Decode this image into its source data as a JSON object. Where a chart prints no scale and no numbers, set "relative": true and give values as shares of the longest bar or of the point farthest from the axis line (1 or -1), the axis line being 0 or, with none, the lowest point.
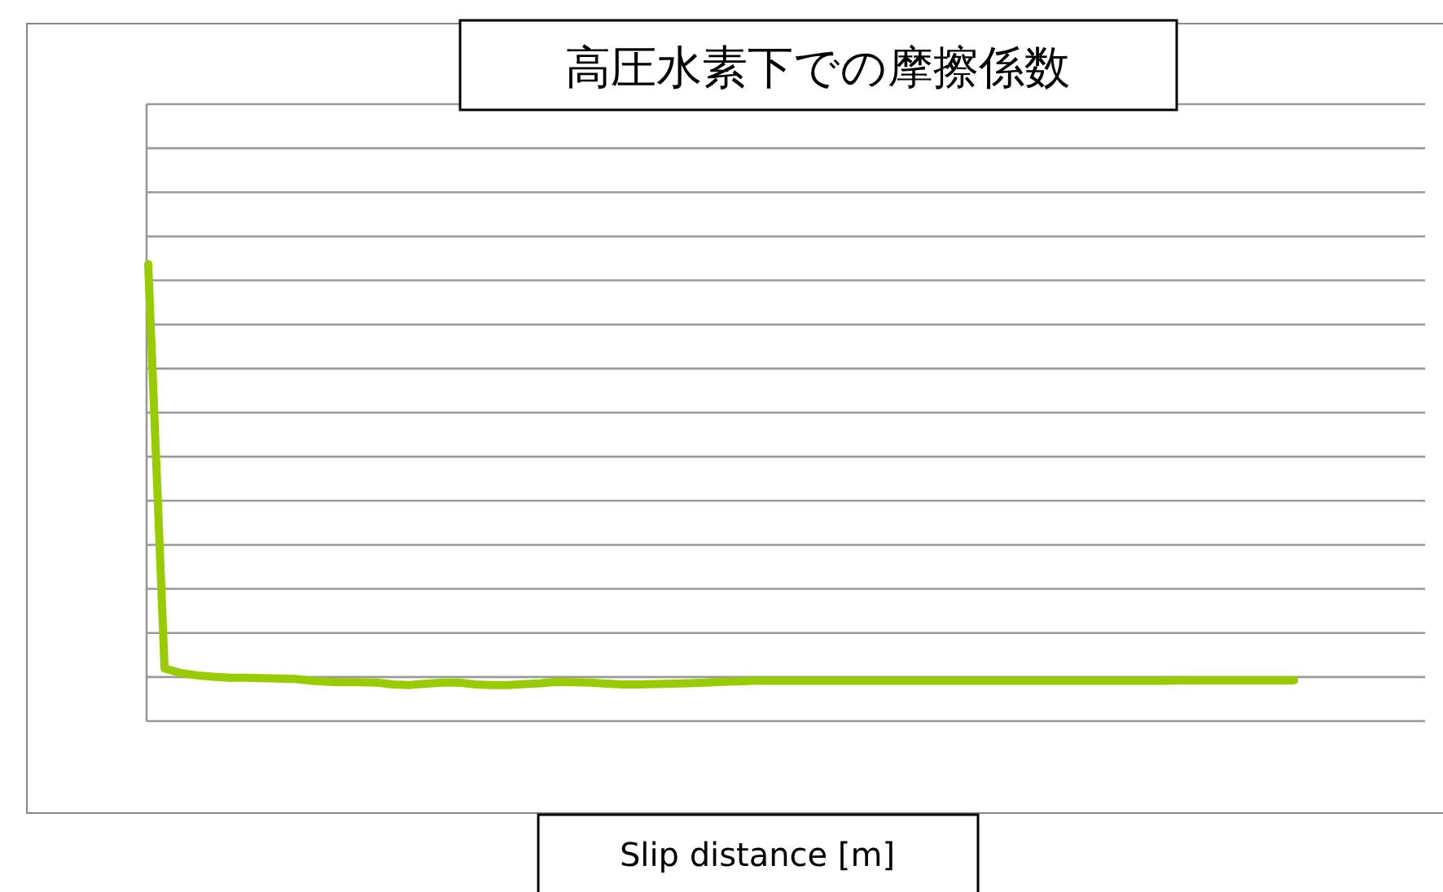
{
  "chart_data": {
    "type": "line",
    "title": "高圧水素下での摩擦係数",
    "xlabel": "Slip distance [m]",
    "relative": true,
    "grid": "y",
    "marker": "none",
    "line_style": "solid",
    "categories": [
      null,
      null,
      null,
      null,
      null,
      null,
      null,
      null,
      null,
      null,
      null,
      null,
      null,
      null,
      null,
      null,
      null,
      null,
      null,
      null,
      null,
      null,
      null,
      null,
      null,
      null,
      null,
      null,
      null,
      null,
      null,
      null,
      null,
      null,
      null,
      null,
      null,
      null,
      null,
      null,
      null,
      null,
      null,
      null,
      null,
      null,
      null,
      null,
      null,
      null,
      null,
      null,
      null,
      null,
      null,
      null,
      null,
      null,
      null,
      null,
      null,
      null,
      null,
      null,
      null,
      null,
      null,
      null,
      null,
      null,
      null,
      null,
      null,
      null,
      null,
      null,
      null,
      null,
      null
    ],
    "series": [
      {
        "color": "#99cc00",
        "values": [
          1.0,
          0.115,
          0.105,
          0.1,
          0.097,
          0.095,
          0.095,
          0.094,
          0.093,
          0.092,
          0.088,
          0.086,
          0.085,
          0.085,
          0.084,
          0.08,
          0.079,
          0.082,
          0.084,
          0.084,
          0.08,
          0.079,
          0.079,
          0.081,
          0.083,
          0.086,
          0.085,
          0.084,
          0.082,
          0.08,
          0.08,
          0.081,
          0.082,
          0.083,
          0.084,
          0.086,
          0.087,
          0.088,
          0.088,
          0.088,
          0.088,
          0.088,
          0.088,
          0.088,
          0.088,
          0.088,
          0.088,
          0.088,
          0.088,
          0.088,
          0.088,
          0.088,
          0.088,
          0.088,
          0.088,
          0.088,
          0.088,
          0.088,
          0.088,
          0.088,
          0.088,
          0.088,
          0.088,
          0.089,
          0.089,
          0.089,
          0.089,
          0.089,
          0.089,
          0.089,
          0.089,
          null,
          null,
          null,
          null,
          null,
          null,
          null,
          null
        ]
      }
    ]
  }
}
